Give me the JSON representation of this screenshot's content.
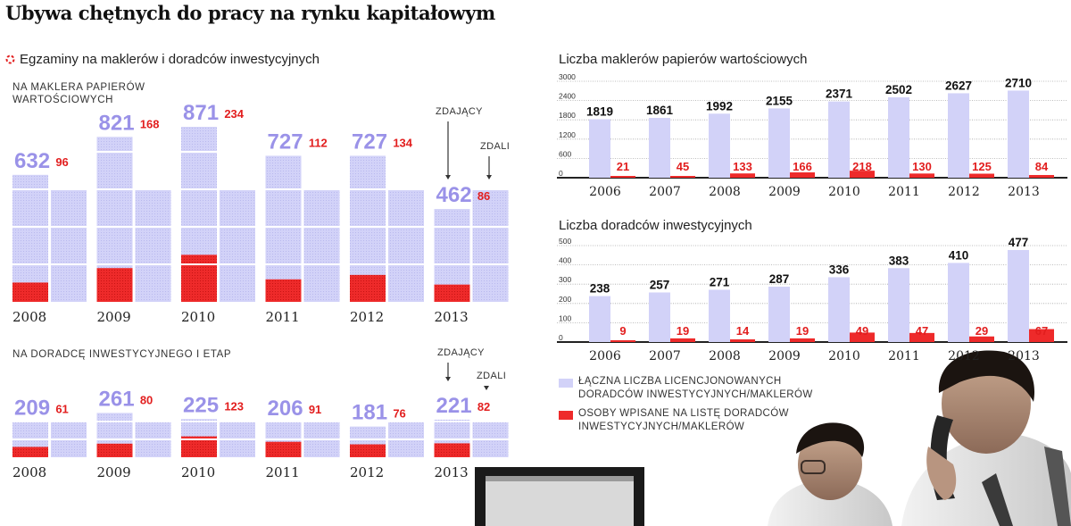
{
  "title": "Ubywa chętnych do pracy na rynku kapitałowym",
  "colors": {
    "lavender": "#d2d2f8",
    "red": "#ee2a2a",
    "purple_text": "#9a92e8",
    "red_text": "#e21e1e"
  },
  "left_section": {
    "title": "Egzaminy na maklerów i doradców inwestycyjnych",
    "labels": {
      "zdajacy": "ZDAJĄCY",
      "zdali": "ZDALI"
    }
  },
  "chart_data": [
    {
      "type": "bar",
      "title": "NA MAKLERA PAPIERÓW WARTOŚCIOWYCH",
      "categories": [
        "2008",
        "2009",
        "2010",
        "2011",
        "2012",
        "2013"
      ],
      "series": [
        {
          "name": "ZDAJĄCY",
          "values": [
            632,
            821,
            871,
            727,
            727,
            462
          ]
        },
        {
          "name": "ZDALI",
          "values": [
            96,
            168,
            234,
            112,
            134,
            86
          ]
        }
      ]
    },
    {
      "type": "bar",
      "title": "NA DORADCĘ INWESTYCYJNEGO I ETAP",
      "categories": [
        "2008",
        "2009",
        "2010",
        "2011",
        "2012",
        "2013"
      ],
      "series": [
        {
          "name": "ZDAJĄCY",
          "values": [
            209,
            261,
            225,
            206,
            181,
            221
          ]
        },
        {
          "name": "ZDALI",
          "values": [
            61,
            80,
            123,
            91,
            76,
            82
          ]
        }
      ]
    },
    {
      "type": "bar",
      "title": "Liczba maklerów papierów wartościowych",
      "categories": [
        "2006",
        "2007",
        "2008",
        "2009",
        "2010",
        "2011",
        "2012",
        "2013"
      ],
      "yticks": [
        "3000",
        "2400",
        "1800",
        "1200",
        "600",
        "0"
      ],
      "ylim": [
        0,
        3000
      ],
      "series": [
        {
          "name": "ŁĄCZNA LICZBA LICENCJONOWANYCH DORADCÓW INWESTYCYJNYCH/MAKLERÓW",
          "values": [
            1819,
            1861,
            1992,
            2155,
            2371,
            2502,
            2627,
            2710
          ]
        },
        {
          "name": "OSOBY WPISANE NA LISTĘ DORADCÓW INWESTYCYJNYCH/MAKLERÓW",
          "values": [
            21,
            45,
            133,
            166,
            218,
            130,
            125,
            84
          ]
        }
      ]
    },
    {
      "type": "bar",
      "title": "Liczba doradców inwestycyjnych",
      "categories": [
        "2006",
        "2007",
        "2008",
        "2009",
        "2010",
        "2011",
        "2012",
        "2013"
      ],
      "yticks": [
        "500",
        "400",
        "300",
        "200",
        "100",
        "0"
      ],
      "ylim": [
        0,
        500
      ],
      "series": [
        {
          "name": "ŁĄCZNA LICZBA LICENCJONOWANYCH DORADCÓW INWESTYCYJNYCH/MAKLERÓW",
          "values": [
            238,
            257,
            271,
            287,
            336,
            383,
            410,
            477
          ]
        },
        {
          "name": "OSOBY WPISANE NA LISTĘ DORADCÓW INWESTYCYJNYCH/MAKLERÓW",
          "values": [
            9,
            19,
            14,
            19,
            49,
            47,
            29,
            67
          ]
        }
      ]
    }
  ],
  "legend": {
    "total": "ŁĄCZNA LICZBA LICENCJONOWANYCH DORADCÓW INWESTYCYJNYCH/MAKLERÓW",
    "listed": "OSOBY WPISANE NA LISTĘ DORADCÓW INWESTYCYJNYCH/MAKLERÓW"
  },
  "photo": {
    "description_icon": "office-workers-photo"
  }
}
